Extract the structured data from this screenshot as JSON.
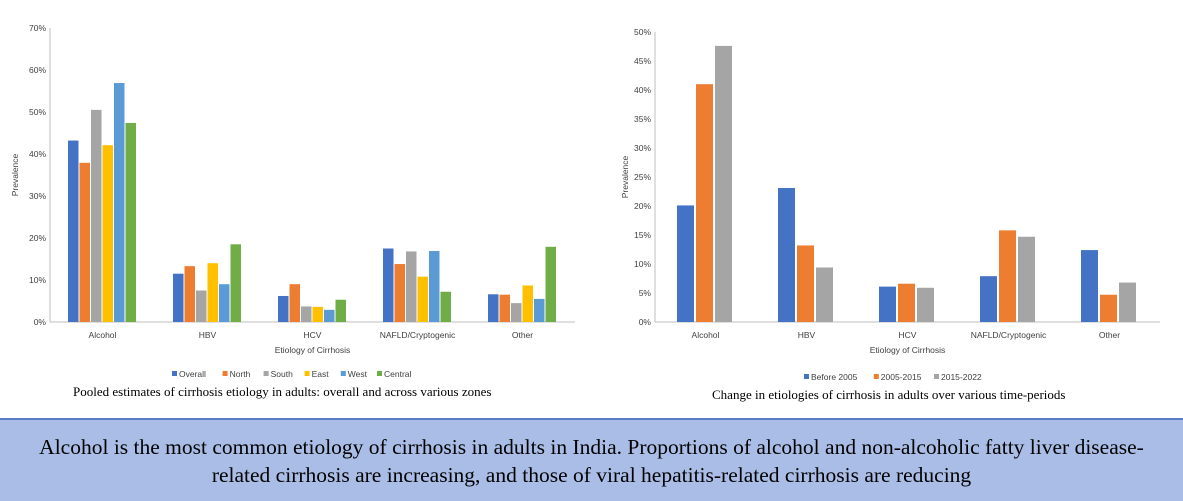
{
  "chart_data": [
    {
      "type": "bar",
      "title": "Pooled estimates of cirrhosis etiology in adults: overall and across various zones",
      "xlabel": "Etiology of Cirrhosis",
      "ylabel": "Prevalence",
      "ylim": [
        0,
        70
      ],
      "yticks": [
        0,
        10,
        20,
        30,
        40,
        50,
        60,
        70
      ],
      "tick_suffix": "%",
      "categories": [
        "Alcohol",
        "HBV",
        "HCV",
        "NAFLD/Cryptogenic",
        "Other"
      ],
      "legend_position": "bottom",
      "series": [
        {
          "name": "Overall",
          "color": "#4472c4",
          "values": [
            43.2,
            11.5,
            6.2,
            17.5,
            6.6
          ]
        },
        {
          "name": "North",
          "color": "#ed7d31",
          "values": [
            37.9,
            13.3,
            9.0,
            13.8,
            6.5
          ]
        },
        {
          "name": "South",
          "color": "#a5a5a5",
          "values": [
            50.5,
            7.5,
            3.7,
            16.8,
            4.5
          ]
        },
        {
          "name": "East",
          "color": "#ffc000",
          "values": [
            42.1,
            14.0,
            3.6,
            10.8,
            8.7
          ]
        },
        {
          "name": "West",
          "color": "#5b9bd5",
          "values": [
            56.9,
            9.0,
            2.9,
            16.9,
            5.5
          ]
        },
        {
          "name": "Central",
          "color": "#70ad47",
          "values": [
            47.4,
            18.5,
            5.3,
            7.2,
            17.9
          ]
        }
      ]
    },
    {
      "type": "bar",
      "title": "Change in etiologies of cirrhosis in adults over various time-periods",
      "xlabel": "Etiology of Cirrhosis",
      "ylabel": "Prevalence",
      "ylim": [
        0,
        50
      ],
      "yticks": [
        0,
        5,
        10,
        15,
        20,
        25,
        30,
        35,
        40,
        45,
        50
      ],
      "tick_suffix": "%",
      "categories": [
        "Alcohol",
        "HBV",
        "HCV",
        "NAFLD/Cryptogenic",
        "Other"
      ],
      "legend_position": "bottom",
      "series": [
        {
          "name": "Before 2005",
          "color": "#4472c4",
          "values": [
            20.1,
            23.1,
            6.1,
            7.9,
            12.4
          ]
        },
        {
          "name": "2005-2015",
          "color": "#ed7d31",
          "values": [
            41.0,
            13.2,
            6.6,
            15.8,
            4.7
          ]
        },
        {
          "name": "2015-2022",
          "color": "#a5a5a5",
          "values": [
            47.6,
            9.4,
            5.9,
            14.7,
            6.8
          ]
        }
      ]
    }
  ],
  "summary": "Alcohol is the most common etiology of cirrhosis in adults in India. Proportions of alcohol and non-alcoholic fatty liver disease-related cirrhosis are increasing, and those of viral hepatitis-related cirrhosis are reducing"
}
